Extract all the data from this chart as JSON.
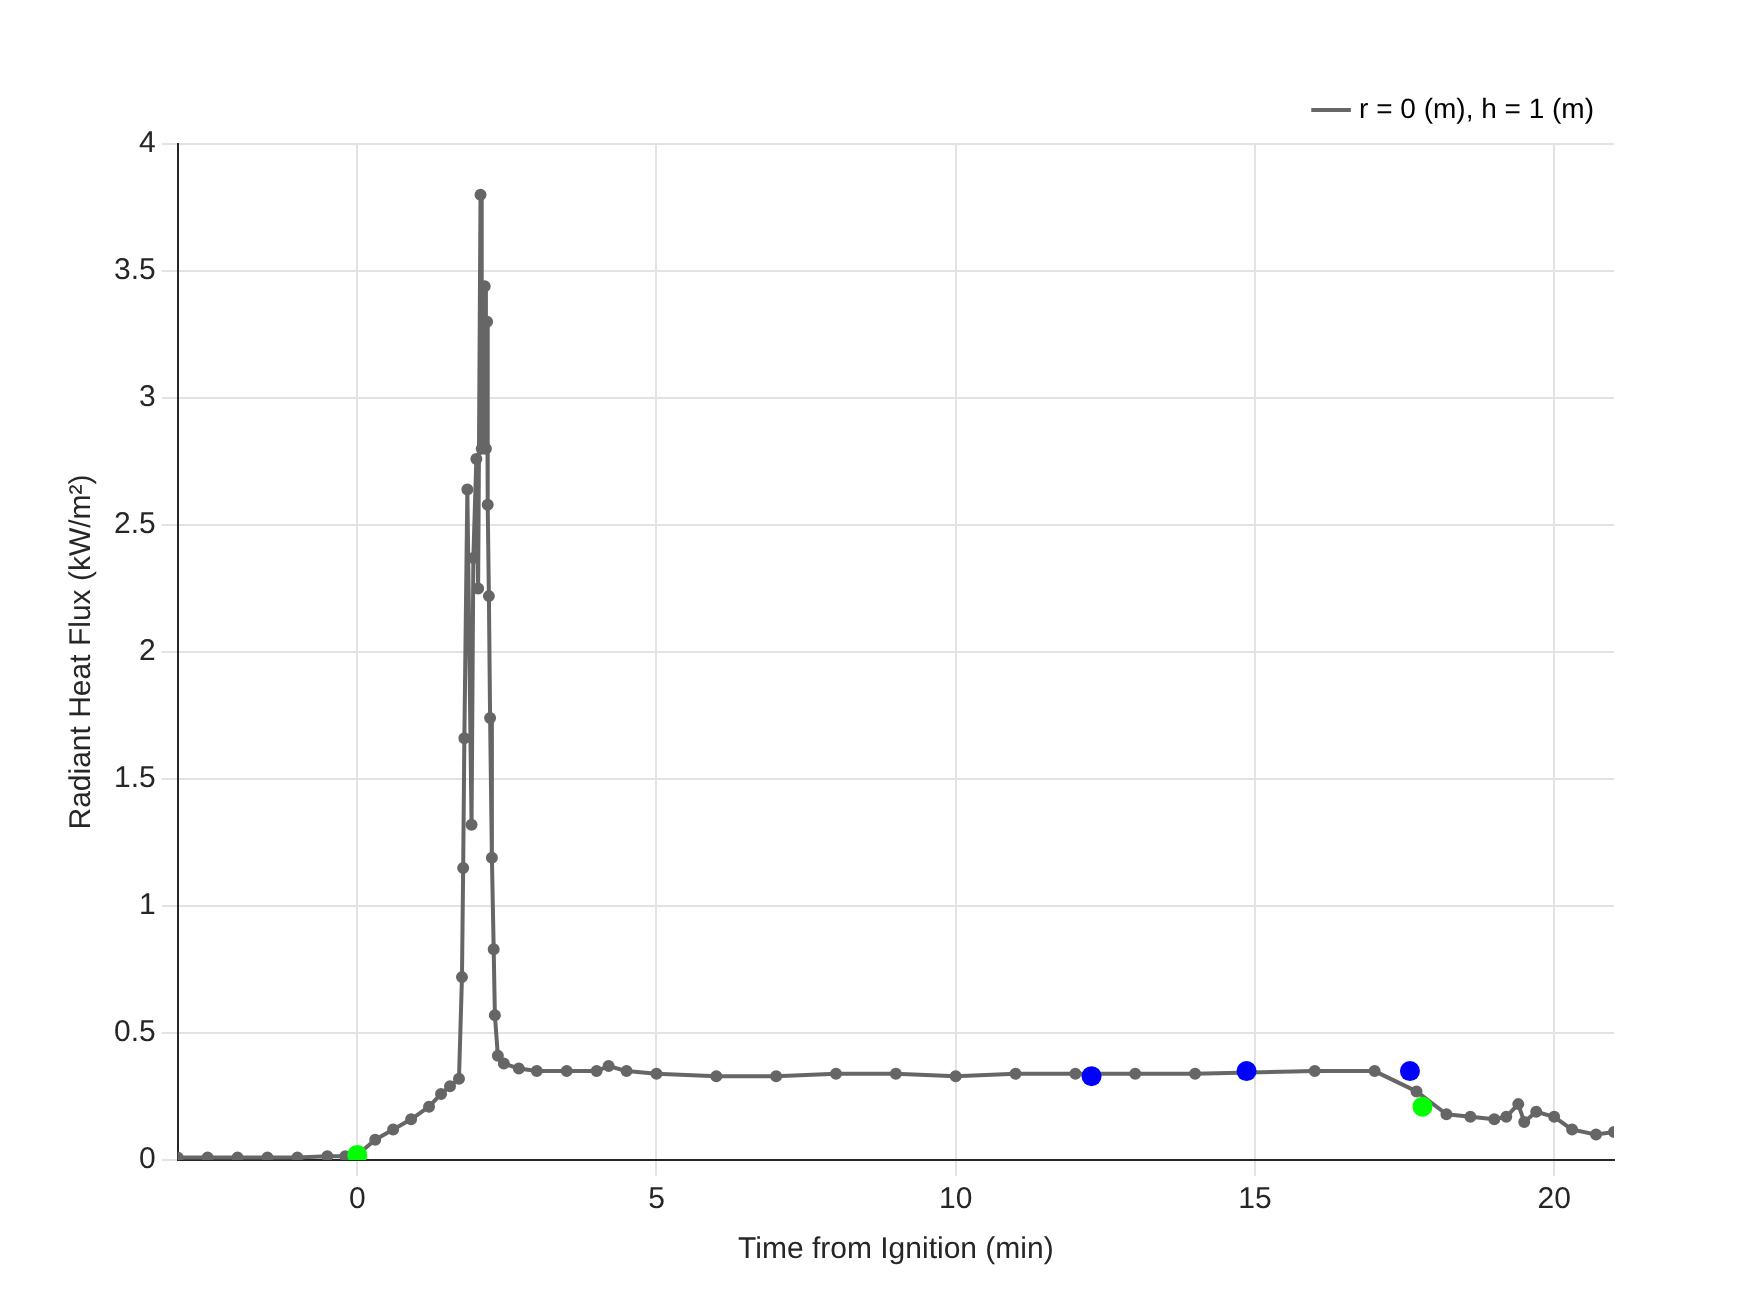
{
  "chart_data": {
    "type": "line",
    "xlabel": "Time from Ignition (min)",
    "ylabel": "Radiant Heat Flux (kW/m²)",
    "xlim": [
      -3,
      21
    ],
    "ylim": [
      0,
      4
    ],
    "xticks": [
      0,
      5,
      10,
      15,
      20
    ],
    "yticks": [
      0,
      0.5,
      1,
      1.5,
      2,
      2.5,
      3,
      3.5,
      4
    ],
    "grid": true,
    "legend": "top right",
    "series": [
      {
        "name": "r = 0 (m), h = 1 (m)",
        "color": "#666666",
        "marker": "circle",
        "x": [
          -3,
          -2.5,
          -2,
          -1.5,
          -1,
          -0.5,
          -0.2,
          0,
          0.3,
          0.6,
          0.9,
          1.2,
          1.4,
          1.55,
          1.7,
          1.75,
          1.77,
          1.79,
          1.84,
          1.91,
          1.94,
          1.99,
          2.02,
          2.06,
          2.08,
          2.13,
          2.15,
          2.17,
          2.18,
          2.2,
          2.22,
          2.25,
          2.28,
          2.3,
          2.35,
          2.45,
          2.7,
          3,
          3.5,
          4,
          4.2,
          4.5,
          5,
          6,
          7,
          8,
          9,
          10,
          11,
          12,
          13,
          14,
          16,
          17,
          17.7,
          18.2,
          18.6,
          19,
          19.2,
          19.4,
          19.5,
          19.7,
          20,
          20.3,
          20.7,
          21
        ],
        "values": [
          0.01,
          0.01,
          0.01,
          0.01,
          0.01,
          0.015,
          0.015,
          0.02,
          0.08,
          0.12,
          0.16,
          0.21,
          0.26,
          0.29,
          0.32,
          0.72,
          1.15,
          1.66,
          2.64,
          1.32,
          2.37,
          2.76,
          2.25,
          3.8,
          2.8,
          3.44,
          2.8,
          3.3,
          2.58,
          2.22,
          1.74,
          1.19,
          0.83,
          0.57,
          0.41,
          0.38,
          0.36,
          0.35,
          0.35,
          0.35,
          0.37,
          0.35,
          0.34,
          0.33,
          0.33,
          0.34,
          0.34,
          0.33,
          0.34,
          0.34,
          0.34,
          0.34,
          0.35,
          0.35,
          0.27,
          0.18,
          0.17,
          0.16,
          0.17,
          0.22,
          0.15,
          0.19,
          0.17,
          0.12,
          0.1,
          0.11
        ]
      },
      {
        "type": "scatter",
        "color": "#0000ff",
        "marker": "circle",
        "x": [
          12.27,
          14.86,
          17.59
        ],
        "values": [
          0.33,
          0.35,
          0.35
        ]
      },
      {
        "type": "scatter",
        "color": "#00ff00",
        "marker": "circle",
        "x": [
          0,
          17.8
        ],
        "values": [
          0.02,
          0.21
        ]
      }
    ]
  }
}
